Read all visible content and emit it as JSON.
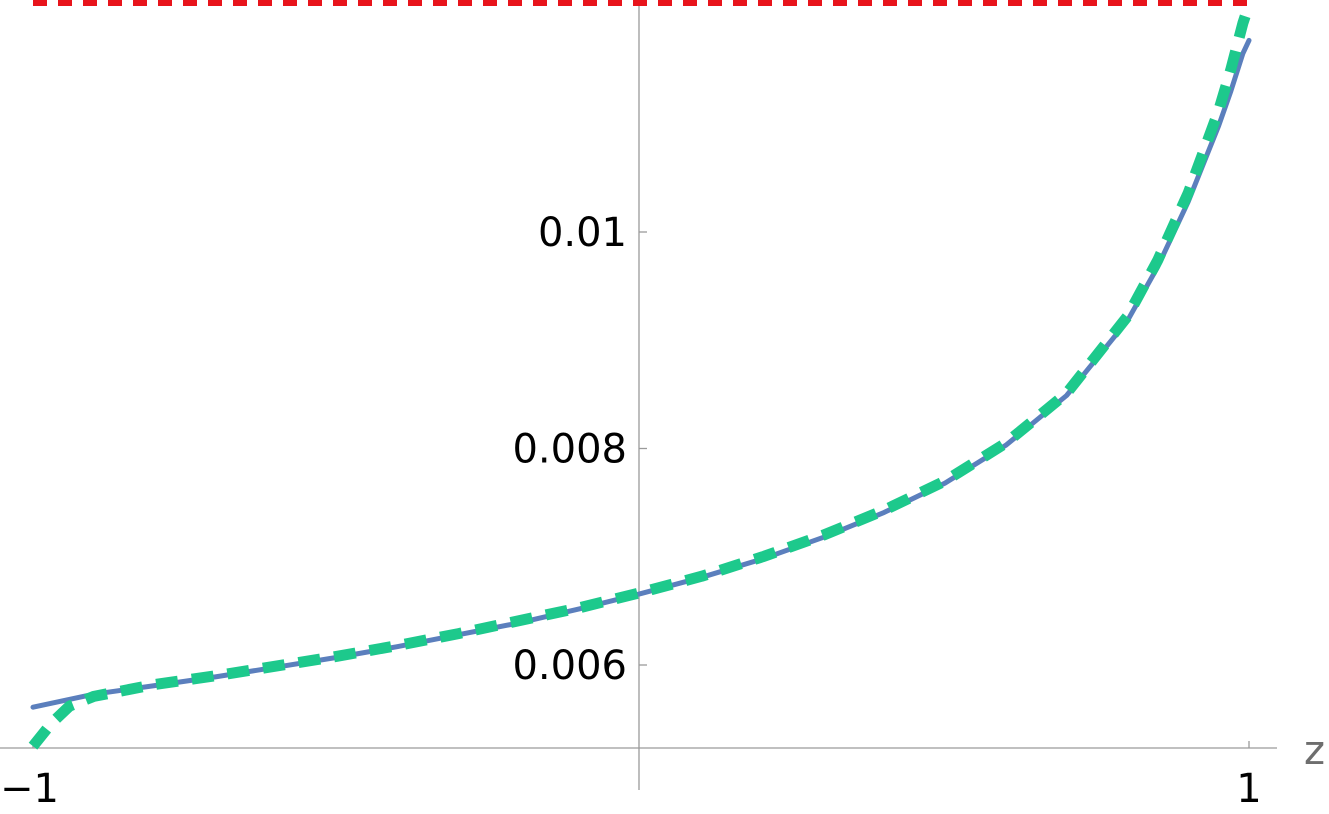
{
  "chart_data": {
    "type": "line",
    "title": "",
    "xlabel": "z",
    "ylabel": "",
    "xlim": [
      -1,
      1
    ],
    "ylim": [
      0.00525,
      0.01175
    ],
    "grid": false,
    "legend": "none",
    "x_ticks": [
      {
        "value": -1,
        "label": "−1"
      },
      {
        "value": 1,
        "label": "1"
      }
    ],
    "y_ticks": [
      {
        "value": 0.006,
        "label": "0.006"
      },
      {
        "value": 0.008,
        "label": "0.008"
      },
      {
        "value": 0.01,
        "label": "0.01"
      }
    ],
    "series": [
      {
        "style": "solid",
        "color": "#5b7fbd",
        "x": [
          -1,
          -0.9,
          -0.8,
          -0.7,
          -0.6,
          -0.5,
          -0.4,
          -0.3,
          -0.2,
          -0.1,
          0,
          0.1,
          0.2,
          0.3,
          0.4,
          0.5,
          0.6,
          0.7,
          0.8,
          0.85,
          0.9,
          0.95,
          0.97,
          0.99,
          1
        ],
        "y": [
          0.00561,
          0.00573,
          0.00581,
          0.00589,
          0.00598,
          0.00607,
          0.00617,
          0.00628,
          0.00639,
          0.00652,
          0.00666,
          0.00681,
          0.00698,
          0.00718,
          0.00741,
          0.00768,
          0.00803,
          0.00849,
          0.00918,
          0.00968,
          0.01028,
          0.01098,
          0.0113,
          0.01165,
          0.01177
        ]
      },
      {
        "style": "dashed",
        "color": "#1dc98c",
        "x": [
          -1,
          -0.97,
          -0.94,
          -0.9,
          -0.8,
          -0.7,
          -0.6,
          -0.5,
          -0.4,
          -0.3,
          -0.2,
          -0.1,
          0,
          0.1,
          0.2,
          0.3,
          0.4,
          0.5,
          0.6,
          0.7,
          0.8,
          0.85,
          0.9,
          0.95,
          0.97,
          0.99,
          1
        ],
        "y": [
          0.00525,
          0.00546,
          0.00562,
          0.00571,
          0.00582,
          0.0059,
          0.00599,
          0.00608,
          0.00618,
          0.00629,
          0.00641,
          0.00653,
          0.00667,
          0.00682,
          0.007,
          0.0072,
          0.00743,
          0.0077,
          0.00805,
          0.00851,
          0.00922,
          0.00974,
          0.01036,
          0.01112,
          0.0115,
          0.01193,
          0.0121
        ]
      },
      {
        "style": "dashed",
        "color": "#e8141b",
        "x": [
          -1,
          1
        ],
        "y": [
          0.01212,
          0.01212
        ]
      }
    ]
  }
}
